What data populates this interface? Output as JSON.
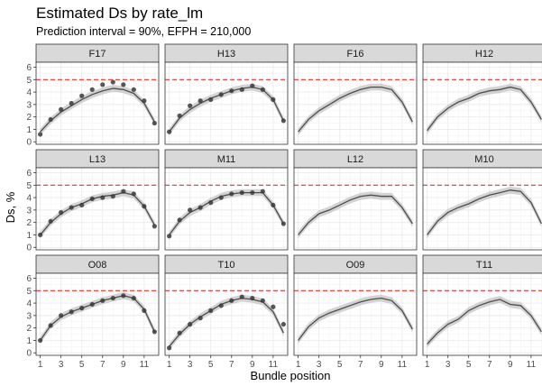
{
  "page": {
    "title": "Estimated Ds by rate_lm",
    "subtitle": "Prediction interval = 90%, EFPH = 210,000"
  },
  "chart_data": {
    "type": "line",
    "title": "Estimated Ds by rate_lm",
    "subtitle": "Prediction interval = 90%, EFPH = 210,000",
    "xlabel": "Bundle position",
    "ylabel": "Ds, %",
    "xlim": [
      0.6,
      12.4
    ],
    "ylim": [
      -0.2,
      6.4
    ],
    "x_ticks": [
      1,
      3,
      5,
      7,
      9,
      11
    ],
    "y_ticks": [
      0,
      1,
      2,
      3,
      4,
      5,
      6
    ],
    "reference_line": {
      "y": 5,
      "color": "#e8312f",
      "style": "dashed"
    },
    "colors": {
      "panel_bg": "#ffffff",
      "strip_bg": "#d9d9d9",
      "grid": "#ebebeb",
      "line": "#4d4d4d",
      "band": "#c4c4c4",
      "points": "#3a3a3a"
    },
    "grid": true,
    "x": [
      1,
      2,
      3,
      4,
      5,
      6,
      7,
      8,
      9,
      10,
      11,
      12
    ],
    "panels": [
      {
        "name": "F17",
        "fit": [
          0.8,
          1.7,
          2.4,
          2.9,
          3.4,
          3.8,
          4.1,
          4.3,
          4.2,
          3.9,
          3.1,
          1.6
        ],
        "points": [
          0.6,
          1.8,
          2.6,
          3.1,
          3.7,
          4.2,
          4.6,
          4.8,
          4.6,
          4.2,
          3.3,
          1.5
        ]
      },
      {
        "name": "H13",
        "fit": [
          0.8,
          1.9,
          2.6,
          3.1,
          3.5,
          3.8,
          4.1,
          4.3,
          4.4,
          4.2,
          3.4,
          1.7
        ],
        "points": [
          0.8,
          2.1,
          2.9,
          3.3,
          3.4,
          3.8,
          4.1,
          4.2,
          4.5,
          4.2,
          3.4,
          1.7
        ]
      },
      {
        "name": "F16",
        "fit": [
          0.8,
          1.8,
          2.5,
          3.0,
          3.5,
          3.9,
          4.2,
          4.4,
          4.4,
          4.2,
          3.2,
          1.6
        ],
        "points": []
      },
      {
        "name": "H12",
        "fit": [
          0.9,
          2.0,
          2.7,
          3.2,
          3.5,
          3.9,
          4.1,
          4.2,
          4.4,
          4.2,
          3.2,
          1.8
        ],
        "points": []
      },
      {
        "name": "L13",
        "fit": [
          1.0,
          2.0,
          2.7,
          3.2,
          3.5,
          3.9,
          4.1,
          4.2,
          4.4,
          4.2,
          3.3,
          1.8
        ],
        "points": [
          1.0,
          2.1,
          2.8,
          3.2,
          3.4,
          3.9,
          4.0,
          4.1,
          4.5,
          4.3,
          3.3,
          1.7
        ]
      },
      {
        "name": "M11",
        "fit": [
          1.0,
          2.1,
          2.8,
          3.2,
          3.7,
          4.1,
          4.3,
          4.4,
          4.4,
          4.4,
          3.4,
          1.9
        ],
        "points": [
          0.9,
          2.2,
          3.0,
          3.2,
          3.6,
          4.0,
          4.3,
          4.4,
          4.4,
          4.5,
          3.4,
          1.9
        ]
      },
      {
        "name": "L12",
        "fit": [
          1.0,
          2.0,
          2.7,
          3.0,
          3.4,
          3.8,
          4.1,
          4.2,
          4.1,
          4.1,
          3.2,
          1.9
        ],
        "points": []
      },
      {
        "name": "M10",
        "fit": [
          1.0,
          2.1,
          2.8,
          3.2,
          3.5,
          3.9,
          4.2,
          4.4,
          4.6,
          4.5,
          3.6,
          1.9
        ],
        "points": []
      },
      {
        "name": "O08",
        "fit": [
          1.0,
          2.2,
          2.9,
          3.3,
          3.6,
          3.9,
          4.2,
          4.4,
          4.6,
          4.4,
          3.5,
          1.7
        ],
        "points": [
          1.0,
          2.2,
          3.0,
          3.3,
          3.6,
          3.9,
          4.2,
          4.4,
          4.6,
          4.4,
          3.4,
          1.7
        ]
      },
      {
        "name": "T10",
        "fit": [
          0.5,
          1.5,
          2.3,
          2.9,
          3.4,
          3.9,
          4.2,
          4.4,
          4.3,
          4.1,
          3.3,
          1.6
        ],
        "points": [
          0.4,
          1.6,
          2.3,
          2.8,
          3.4,
          3.8,
          4.2,
          4.5,
          4.4,
          4.2,
          3.7,
          2.3
        ]
      },
      {
        "name": "O09",
        "fit": [
          1.0,
          2.1,
          2.8,
          3.2,
          3.5,
          3.8,
          4.1,
          4.3,
          4.4,
          4.2,
          3.4,
          1.9
        ],
        "points": []
      },
      {
        "name": "T11",
        "fit": [
          0.7,
          1.6,
          2.3,
          2.7,
          3.4,
          3.8,
          4.1,
          4.3,
          3.9,
          3.8,
          3.0,
          1.7
        ],
        "points": []
      }
    ]
  }
}
